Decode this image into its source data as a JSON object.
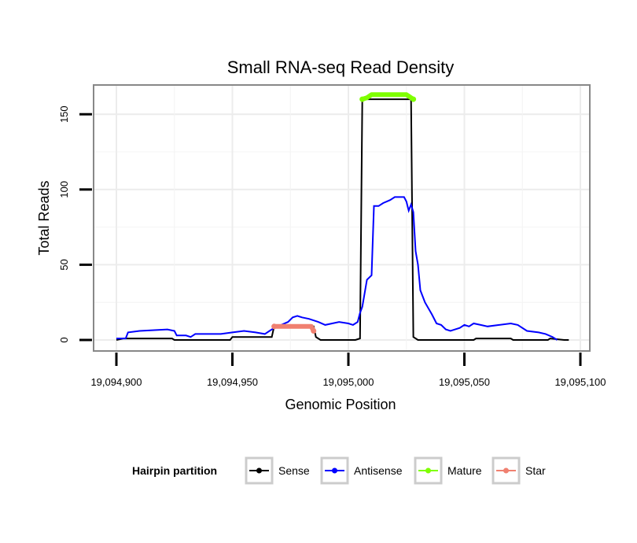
{
  "chart_data": {
    "type": "line",
    "title": "Small RNA-seq Read Density",
    "xlabel": "Genomic Position",
    "ylabel": "Total Reads",
    "xlim": [
      19094900,
      19095100
    ],
    "ylim": [
      -7,
      168
    ],
    "x_ticks": [
      19094900,
      19094950,
      19095000,
      19095050,
      19095100
    ],
    "x_tick_labels": [
      "19,094,900",
      "19,094,950",
      "19,095,000",
      "19,095,050",
      "19,095,100"
    ],
    "y_ticks": [
      0,
      50,
      100,
      150
    ],
    "y_tick_labels": [
      "0",
      "50",
      "100",
      "150"
    ],
    "grid": true,
    "legend": {
      "title": "Hairpin partition",
      "position": "bottom",
      "entries": [
        "Sense",
        "Antisense",
        "Mature",
        "Star"
      ]
    },
    "series": [
      {
        "name": "Sense",
        "color": "#000000",
        "points": [
          [
            19094900,
            0
          ],
          [
            19094903,
            1
          ],
          [
            19094924,
            1
          ],
          [
            19094925,
            0
          ],
          [
            19094949,
            0
          ],
          [
            19094950,
            2
          ],
          [
            19094967,
            2
          ],
          [
            19094968,
            9
          ],
          [
            19094985,
            9
          ],
          [
            19094986,
            2
          ],
          [
            19094988,
            0
          ],
          [
            19095003,
            0
          ],
          [
            19095005,
            1
          ],
          [
            19095006,
            160
          ],
          [
            19095027,
            160
          ],
          [
            19095028,
            2
          ],
          [
            19095030,
            0
          ],
          [
            19095054,
            0
          ],
          [
            19095055,
            1
          ],
          [
            19095070,
            1
          ],
          [
            19095071,
            0
          ],
          [
            19095086,
            0
          ],
          [
            19095087,
            1
          ],
          [
            19095093,
            0
          ],
          [
            19095095,
            0
          ]
        ]
      },
      {
        "name": "Antisense",
        "color": "#0000ff",
        "points": [
          [
            19094900,
            1
          ],
          [
            19094904,
            1
          ],
          [
            19094905,
            5
          ],
          [
            19094910,
            6
          ],
          [
            19094922,
            7
          ],
          [
            19094925,
            6
          ],
          [
            19094926,
            3
          ],
          [
            19094930,
            3
          ],
          [
            19094932,
            2
          ],
          [
            19094933,
            3
          ],
          [
            19094934,
            4
          ],
          [
            19094940,
            4
          ],
          [
            19094945,
            4
          ],
          [
            19094950,
            5
          ],
          [
            19094955,
            6
          ],
          [
            19094960,
            5
          ],
          [
            19094964,
            4
          ],
          [
            19094966,
            6
          ],
          [
            19094968,
            8
          ],
          [
            19094974,
            12
          ],
          [
            19094976,
            15
          ],
          [
            19094978,
            16
          ],
          [
            19094980,
            15
          ],
          [
            19094983,
            14
          ],
          [
            19094987,
            12
          ],
          [
            19094990,
            10
          ],
          [
            19094993,
            11
          ],
          [
            19094996,
            12
          ],
          [
            19095000,
            11
          ],
          [
            19095002,
            10
          ],
          [
            19095004,
            12
          ],
          [
            19095005,
            18
          ],
          [
            19095006,
            22
          ],
          [
            19095008,
            40
          ],
          [
            19095010,
            43
          ],
          [
            19095011,
            89
          ],
          [
            19095013,
            89
          ],
          [
            19095015,
            91
          ],
          [
            19095018,
            93
          ],
          [
            19095020,
            95
          ],
          [
            19095024,
            95
          ],
          [
            19095025,
            92
          ],
          [
            19095026,
            86
          ],
          [
            19095027,
            90
          ],
          [
            19095028,
            85
          ],
          [
            19095029,
            59
          ],
          [
            19095030,
            50
          ],
          [
            19095031,
            33
          ],
          [
            19095033,
            25
          ],
          [
            19095036,
            17
          ],
          [
            19095038,
            11
          ],
          [
            19095040,
            10
          ],
          [
            19095042,
            7
          ],
          [
            19095044,
            6
          ],
          [
            19095046,
            7
          ],
          [
            19095048,
            8
          ],
          [
            19095050,
            10
          ],
          [
            19095052,
            9
          ],
          [
            19095054,
            11
          ],
          [
            19095057,
            10
          ],
          [
            19095060,
            9
          ],
          [
            19095065,
            10
          ],
          [
            19095070,
            11
          ],
          [
            19095073,
            10
          ],
          [
            19095077,
            6
          ],
          [
            19095082,
            5
          ],
          [
            19095085,
            4
          ],
          [
            19095088,
            2
          ],
          [
            19095090,
            0
          ]
        ]
      },
      {
        "name": "Mature",
        "color": "#7fff00",
        "points": [
          [
            19095006,
            160
          ],
          [
            19095008,
            161
          ],
          [
            19095010,
            163
          ],
          [
            19095025,
            163
          ],
          [
            19095027,
            161
          ],
          [
            19095028,
            160
          ]
        ]
      },
      {
        "name": "Star",
        "color": "#f08070",
        "points": [
          [
            19094968,
            9
          ],
          [
            19094970,
            9
          ],
          [
            19094984,
            9
          ],
          [
            19094985,
            6
          ]
        ]
      }
    ]
  }
}
